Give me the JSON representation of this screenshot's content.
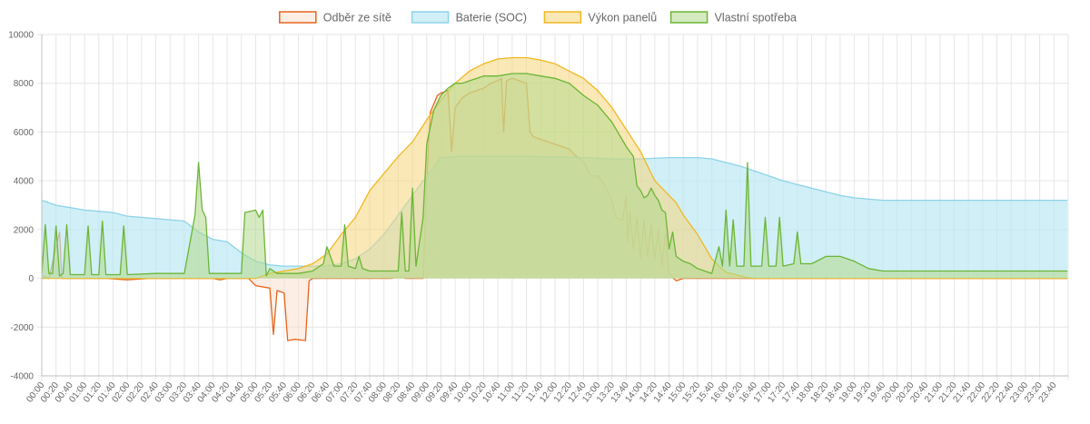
{
  "chart_data": {
    "type": "area",
    "x": [
      "00:00",
      "00:20",
      "00:40",
      "01:00",
      "01:20",
      "01:40",
      "02:00",
      "02:20",
      "02:40",
      "03:00",
      "03:20",
      "03:40",
      "04:00",
      "04:20",
      "04:40",
      "05:00",
      "05:20",
      "05:40",
      "06:00",
      "06:20",
      "06:40",
      "07:00",
      "07:20",
      "07:40",
      "08:00",
      "08:20",
      "08:40",
      "09:00",
      "09:20",
      "09:40",
      "10:00",
      "10:20",
      "10:40",
      "11:00",
      "11:20",
      "11:40",
      "12:00",
      "12:20",
      "12:40",
      "13:00",
      "13:20",
      "13:40",
      "14:00",
      "14:20",
      "14:40",
      "15:00",
      "15:20",
      "15:40",
      "16:00",
      "16:20",
      "16:40",
      "17:00",
      "17:20",
      "17:40",
      "18:00",
      "18:20",
      "18:40",
      "19:00",
      "19:20",
      "19:40",
      "20:00",
      "20:20",
      "20:40",
      "21:00",
      "21:20",
      "21:40",
      "22:00",
      "22:20",
      "22:40",
      "23:00",
      "23:20",
      "23:40"
    ],
    "ylim": [
      -4000,
      10000
    ],
    "yticks": [
      "10000",
      "8000",
      "6000",
      "4000",
      "2000",
      "0",
      "-2000",
      "-4000"
    ],
    "grid": true,
    "legend_position": "top",
    "series": [
      {
        "name": "Odběr ze sítě",
        "color": "#e8631a",
        "fill": "rgba(250,224,207,0.55)",
        "points": [
          [
            0,
            100
          ],
          [
            10,
            0
          ],
          [
            25,
            1900
          ],
          [
            28,
            0
          ],
          [
            60,
            0
          ],
          [
            90,
            0
          ],
          [
            120,
            -60
          ],
          [
            150,
            0
          ],
          [
            180,
            0
          ],
          [
            200,
            0
          ],
          [
            220,
            0
          ],
          [
            240,
            0
          ],
          [
            250,
            -60
          ],
          [
            260,
            0
          ],
          [
            290,
            0
          ],
          [
            300,
            -300
          ],
          [
            320,
            -400
          ],
          [
            325,
            -2300
          ],
          [
            330,
            -500
          ],
          [
            340,
            -600
          ],
          [
            345,
            -2550
          ],
          [
            355,
            -2500
          ],
          [
            370,
            -2550
          ],
          [
            375,
            -100
          ],
          [
            380,
            0
          ],
          [
            400,
            0
          ],
          [
            430,
            0
          ],
          [
            460,
            0
          ],
          [
            490,
            0
          ],
          [
            505,
            80
          ],
          [
            510,
            0
          ],
          [
            535,
            0
          ],
          [
            540,
            4000
          ],
          [
            545,
            6800
          ],
          [
            555,
            7500
          ],
          [
            560,
            7600
          ],
          [
            570,
            7700
          ],
          [
            575,
            5200
          ],
          [
            580,
            7000
          ],
          [
            590,
            7400
          ],
          [
            600,
            7600
          ],
          [
            610,
            7700
          ],
          [
            620,
            7800
          ],
          [
            630,
            8000
          ],
          [
            640,
            8100
          ],
          [
            645,
            8200
          ],
          [
            648,
            6000
          ],
          [
            652,
            8100
          ],
          [
            660,
            8200
          ],
          [
            670,
            8100
          ],
          [
            680,
            8000
          ],
          [
            685,
            6000
          ],
          [
            690,
            5800
          ],
          [
            700,
            5700
          ],
          [
            710,
            5600
          ],
          [
            720,
            5500
          ],
          [
            730,
            5400
          ],
          [
            740,
            5300
          ],
          [
            750,
            5000
          ],
          [
            760,
            4800
          ],
          [
            770,
            4200
          ],
          [
            780,
            4200
          ],
          [
            790,
            3800
          ],
          [
            800,
            3200
          ],
          [
            805,
            2500
          ],
          [
            815,
            2400
          ],
          [
            820,
            3400
          ],
          [
            822,
            1500
          ],
          [
            825,
            2800
          ],
          [
            830,
            1200
          ],
          [
            835,
            2500
          ],
          [
            840,
            800
          ],
          [
            845,
            2400
          ],
          [
            850,
            900
          ],
          [
            855,
            2200
          ],
          [
            860,
            800
          ],
          [
            865,
            2000
          ],
          [
            870,
            500
          ],
          [
            875,
            1800
          ],
          [
            880,
            200
          ],
          [
            890,
            -100
          ],
          [
            900,
            0
          ],
          [
            930,
            0
          ],
          [
            960,
            0
          ],
          [
            1000,
            0
          ],
          [
            1050,
            0
          ],
          [
            1100,
            0
          ],
          [
            1150,
            0
          ],
          [
            1200,
            0
          ],
          [
            1439,
            0
          ]
        ]
      },
      {
        "name": "Baterie (SOC)",
        "color": "#8dd3e8",
        "fill": "rgba(184,230,243,0.65)",
        "points": [
          [
            0,
            3200
          ],
          [
            20,
            3000
          ],
          [
            40,
            2900
          ],
          [
            60,
            2800
          ],
          [
            80,
            2750
          ],
          [
            100,
            2700
          ],
          [
            120,
            2550
          ],
          [
            140,
            2500
          ],
          [
            160,
            2450
          ],
          [
            180,
            2400
          ],
          [
            200,
            2350
          ],
          [
            220,
            1900
          ],
          [
            240,
            1600
          ],
          [
            260,
            1500
          ],
          [
            280,
            1050
          ],
          [
            300,
            700
          ],
          [
            320,
            550
          ],
          [
            340,
            500
          ],
          [
            360,
            500
          ],
          [
            380,
            500
          ],
          [
            400,
            520
          ],
          [
            420,
            600
          ],
          [
            440,
            800
          ],
          [
            460,
            1200
          ],
          [
            480,
            1800
          ],
          [
            500,
            2600
          ],
          [
            520,
            3400
          ],
          [
            540,
            4200
          ],
          [
            560,
            4950
          ],
          [
            580,
            5000
          ],
          [
            600,
            5000
          ],
          [
            640,
            5000
          ],
          [
            680,
            5000
          ],
          [
            720,
            4980
          ],
          [
            760,
            4950
          ],
          [
            800,
            4900
          ],
          [
            840,
            4900
          ],
          [
            880,
            4950
          ],
          [
            920,
            4950
          ],
          [
            940,
            4900
          ],
          [
            960,
            4750
          ],
          [
            980,
            4600
          ],
          [
            1000,
            4400
          ],
          [
            1020,
            4200
          ],
          [
            1040,
            4000
          ],
          [
            1060,
            3850
          ],
          [
            1080,
            3700
          ],
          [
            1100,
            3550
          ],
          [
            1120,
            3400
          ],
          [
            1140,
            3300
          ],
          [
            1160,
            3250
          ],
          [
            1180,
            3200
          ],
          [
            1200,
            3200
          ],
          [
            1439,
            3200
          ]
        ]
      },
      {
        "name": "Výkon panelů",
        "color": "#f0b820",
        "fill": "rgba(246,214,123,0.55)",
        "points": [
          [
            0,
            0
          ],
          [
            300,
            0
          ],
          [
            320,
            200
          ],
          [
            340,
            300
          ],
          [
            360,
            400
          ],
          [
            380,
            600
          ],
          [
            400,
            1000
          ],
          [
            420,
            1800
          ],
          [
            440,
            2500
          ],
          [
            460,
            3600
          ],
          [
            480,
            4300
          ],
          [
            500,
            5000
          ],
          [
            520,
            5600
          ],
          [
            540,
            6500
          ],
          [
            560,
            7300
          ],
          [
            580,
            8000
          ],
          [
            600,
            8500
          ],
          [
            620,
            8800
          ],
          [
            640,
            9000
          ],
          [
            660,
            9050
          ],
          [
            680,
            9050
          ],
          [
            700,
            8950
          ],
          [
            720,
            8800
          ],
          [
            740,
            8500
          ],
          [
            760,
            8200
          ],
          [
            780,
            7700
          ],
          [
            800,
            7000
          ],
          [
            820,
            6100
          ],
          [
            840,
            5200
          ],
          [
            860,
            4000
          ],
          [
            870,
            3700
          ],
          [
            880,
            3400
          ],
          [
            890,
            3100
          ],
          [
            900,
            2600
          ],
          [
            910,
            2200
          ],
          [
            920,
            1800
          ],
          [
            930,
            1300
          ],
          [
            940,
            800
          ],
          [
            950,
            500
          ],
          [
            960,
            250
          ],
          [
            980,
            100
          ],
          [
            990,
            30
          ],
          [
            1000,
            0
          ],
          [
            1439,
            0
          ]
        ]
      },
      {
        "name": "Vlastní spotřeba",
        "color": "#6bb535",
        "fill": "rgba(178,217,140,0.55)",
        "points": [
          [
            0,
            200
          ],
          [
            5,
            2200
          ],
          [
            10,
            200
          ],
          [
            15,
            200
          ],
          [
            20,
            2150
          ],
          [
            25,
            100
          ],
          [
            30,
            200
          ],
          [
            35,
            2200
          ],
          [
            40,
            150
          ],
          [
            60,
            150
          ],
          [
            65,
            2150
          ],
          [
            70,
            150
          ],
          [
            80,
            150
          ],
          [
            85,
            2350
          ],
          [
            90,
            150
          ],
          [
            110,
            150
          ],
          [
            115,
            2150
          ],
          [
            120,
            150
          ],
          [
            160,
            200
          ],
          [
            180,
            200
          ],
          [
            200,
            200
          ],
          [
            215,
            2600
          ],
          [
            220,
            4750
          ],
          [
            225,
            2800
          ],
          [
            230,
            2500
          ],
          [
            235,
            200
          ],
          [
            280,
            200
          ],
          [
            285,
            2700
          ],
          [
            300,
            2800
          ],
          [
            305,
            2500
          ],
          [
            310,
            2800
          ],
          [
            315,
            100
          ],
          [
            320,
            400
          ],
          [
            330,
            200
          ],
          [
            360,
            200
          ],
          [
            380,
            300
          ],
          [
            395,
            600
          ],
          [
            400,
            1300
          ],
          [
            410,
            500
          ],
          [
            420,
            500
          ],
          [
            425,
            2200
          ],
          [
            430,
            500
          ],
          [
            440,
            400
          ],
          [
            445,
            900
          ],
          [
            450,
            400
          ],
          [
            460,
            300
          ],
          [
            480,
            300
          ],
          [
            500,
            300
          ],
          [
            505,
            2700
          ],
          [
            510,
            300
          ],
          [
            515,
            300
          ],
          [
            520,
            3700
          ],
          [
            525,
            500
          ],
          [
            530,
            1500
          ],
          [
            535,
            2500
          ],
          [
            540,
            5500
          ],
          [
            550,
            6900
          ],
          [
            560,
            7500
          ],
          [
            570,
            7800
          ],
          [
            580,
            8000
          ],
          [
            590,
            8000
          ],
          [
            600,
            8100
          ],
          [
            620,
            8300
          ],
          [
            640,
            8300
          ],
          [
            660,
            8400
          ],
          [
            680,
            8400
          ],
          [
            700,
            8300
          ],
          [
            720,
            8200
          ],
          [
            740,
            8000
          ],
          [
            760,
            7500
          ],
          [
            780,
            7100
          ],
          [
            800,
            6400
          ],
          [
            820,
            5400
          ],
          [
            830,
            5000
          ],
          [
            835,
            3800
          ],
          [
            840,
            3600
          ],
          [
            845,
            3300
          ],
          [
            850,
            3400
          ],
          [
            855,
            3700
          ],
          [
            860,
            3400
          ],
          [
            865,
            3200
          ],
          [
            870,
            2800
          ],
          [
            875,
            2700
          ],
          [
            880,
            1200
          ],
          [
            885,
            1900
          ],
          [
            890,
            900
          ],
          [
            900,
            700
          ],
          [
            910,
            600
          ],
          [
            920,
            400
          ],
          [
            930,
            300
          ],
          [
            940,
            200
          ],
          [
            950,
            1300
          ],
          [
            955,
            500
          ],
          [
            960,
            2800
          ],
          [
            965,
            500
          ],
          [
            970,
            2400
          ],
          [
            975,
            500
          ],
          [
            985,
            500
          ],
          [
            990,
            4750
          ],
          [
            995,
            500
          ],
          [
            1010,
            500
          ],
          [
            1015,
            2500
          ],
          [
            1020,
            500
          ],
          [
            1030,
            500
          ],
          [
            1035,
            2500
          ],
          [
            1040,
            500
          ],
          [
            1055,
            600
          ],
          [
            1060,
            1900
          ],
          [
            1065,
            600
          ],
          [
            1080,
            600
          ],
          [
            1100,
            900
          ],
          [
            1120,
            900
          ],
          [
            1140,
            700
          ],
          [
            1160,
            400
          ],
          [
            1180,
            300
          ],
          [
            1200,
            300
          ],
          [
            1439,
            300
          ]
        ]
      }
    ]
  }
}
